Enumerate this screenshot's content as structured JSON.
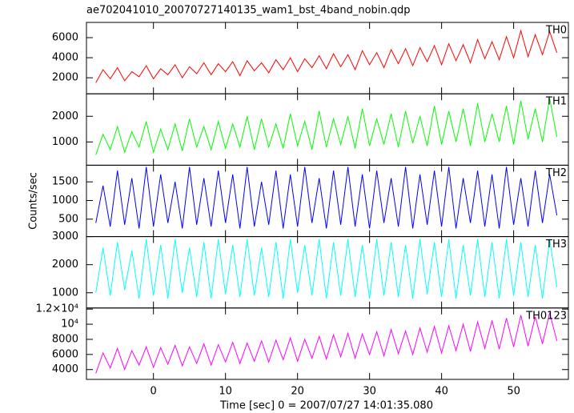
{
  "chart_data": {
    "type": "line",
    "title": "ae702041010_20070727140135_wam1_bst_4band_nobin.qdp",
    "x_label": "Time [sec] 0 = 2007/07/27 14:01:35.080",
    "y_label": "Counts/sec",
    "xlim": [
      -9.3,
      57.6
    ],
    "xticks": [
      0,
      10,
      20,
      30,
      40,
      50
    ],
    "x": [
      -8,
      -7,
      -6,
      -5,
      -4,
      -3,
      -2,
      -1,
      0,
      1,
      2,
      3,
      4,
      5,
      6,
      7,
      8,
      9,
      10,
      11,
      12,
      13,
      14,
      15,
      16,
      17,
      18,
      19,
      20,
      21,
      22,
      23,
      24,
      25,
      26,
      27,
      28,
      29,
      30,
      31,
      32,
      33,
      34,
      35,
      36,
      37,
      38,
      39,
      40,
      41,
      42,
      43,
      44,
      45,
      46,
      47,
      48,
      49,
      50,
      51,
      52,
      53,
      54,
      55,
      56
    ],
    "panels": [
      {
        "name": "TH0",
        "color": "#ff0000",
        "ylim": [
          400,
          7520
        ],
        "yticks": [
          2000,
          4000,
          6000
        ],
        "values": [
          1500,
          2800,
          1900,
          3000,
          1700,
          2600,
          2100,
          3200,
          1900,
          2900,
          2300,
          3300,
          2000,
          3100,
          2400,
          3500,
          2300,
          3400,
          2600,
          3600,
          2200,
          3700,
          2700,
          3500,
          2500,
          3800,
          2800,
          4000,
          2600,
          3900,
          3000,
          4200,
          2900,
          4400,
          3100,
          4300,
          2800,
          4700,
          3300,
          4500,
          3000,
          4800,
          3400,
          4900,
          3200,
          5000,
          3600,
          5200,
          3300,
          5400,
          3700,
          5300,
          3500,
          5800,
          3900,
          5600,
          3800,
          6100,
          4000,
          6700,
          4100,
          6300,
          4300,
          6600,
          4500
        ]
      },
      {
        "name": "TH1",
        "color": "#00ff00",
        "ylim": [
          94,
          2875
        ],
        "yticks": [
          1000,
          2000
        ],
        "values": [
          500,
          1300,
          700,
          1600,
          600,
          1400,
          800,
          1800,
          600,
          1500,
          700,
          1700,
          650,
          1900,
          800,
          1600,
          700,
          1800,
          750,
          1700,
          800,
          2000,
          700,
          1900,
          800,
          1700,
          750,
          2100,
          850,
          1800,
          700,
          2200,
          800,
          1900,
          900,
          2000,
          750,
          2300,
          850,
          1900,
          900,
          2100,
          800,
          2200,
          950,
          2000,
          850,
          2400,
          900,
          2200,
          1000,
          2300,
          850,
          2500,
          1000,
          2100,
          1000,
          2400,
          900,
          2600,
          1100,
          2300,
          1000,
          2700,
          1200
        ]
      },
      {
        "name": "TH2",
        "color": "#0000ff",
        "ylim": [
          32,
          1947
        ],
        "yticks": [
          500,
          1000,
          1500
        ],
        "values": [
          400,
          1400,
          300,
          1800,
          350,
          1600,
          250,
          1900,
          300,
          1700,
          400,
          1500,
          250,
          1900,
          350,
          1600,
          300,
          1800,
          400,
          1700,
          250,
          1900,
          300,
          1500,
          350,
          1800,
          250,
          1700,
          300,
          1900,
          400,
          1600,
          250,
          1800,
          350,
          1900,
          300,
          1700,
          250,
          1800,
          400,
          1600,
          300,
          1900,
          250,
          1700,
          350,
          1800,
          300,
          1900,
          250,
          1600,
          400,
          1800,
          300,
          1700,
          250,
          1900,
          350,
          1600,
          300,
          1800,
          400,
          1700,
          600
        ]
      },
      {
        "name": "TH3",
        "color": "#00ffff",
        "ylim": [
          457,
          3000
        ],
        "yticks": [
          1000,
          2000,
          3000
        ],
        "values": [
          1000,
          2600,
          900,
          2800,
          1100,
          2500,
          800,
          2900,
          900,
          2700,
          800,
          2900,
          1000,
          2600,
          850,
          2800,
          800,
          2900,
          950,
          2700,
          850,
          2900,
          900,
          2600,
          850,
          2800,
          800,
          2900,
          1000,
          2700,
          900,
          2900,
          800,
          2800,
          900,
          2900,
          850,
          2700,
          800,
          2900,
          900,
          2800,
          850,
          2700,
          800,
          2900,
          950,
          2800,
          850,
          2900,
          800,
          2700,
          900,
          2900,
          850,
          2800,
          800,
          2900,
          900,
          2800,
          850,
          2700,
          800,
          2900,
          1200
        ]
      },
      {
        "name": "TH0123",
        "color": "#ff00ff",
        "ylim": [
          2700,
          12150
        ],
        "yticks": [
          4000,
          6000,
          8000,
          {
            "value": 10000,
            "label": "10⁴"
          },
          {
            "value": 12000,
            "label": "1.2×10⁴"
          }
        ],
        "values": [
          3500,
          6200,
          4200,
          6800,
          4000,
          6500,
          4600,
          7000,
          4300,
          6900,
          4700,
          7200,
          4500,
          7000,
          4800,
          7400,
          4600,
          7300,
          5000,
          7600,
          4800,
          7500,
          5100,
          7800,
          5000,
          7900,
          5300,
          8200,
          5100,
          8000,
          5500,
          8400,
          5400,
          8600,
          5700,
          8800,
          5500,
          8700,
          6000,
          9000,
          5800,
          9300,
          6100,
          9100,
          6000,
          9500,
          6300,
          9700,
          6200,
          9800,
          6500,
          10000,
          6400,
          10300,
          6800,
          10500,
          6700,
          10800,
          7000,
          11200,
          7100,
          11000,
          7400,
          11500,
          7800
        ]
      }
    ]
  }
}
